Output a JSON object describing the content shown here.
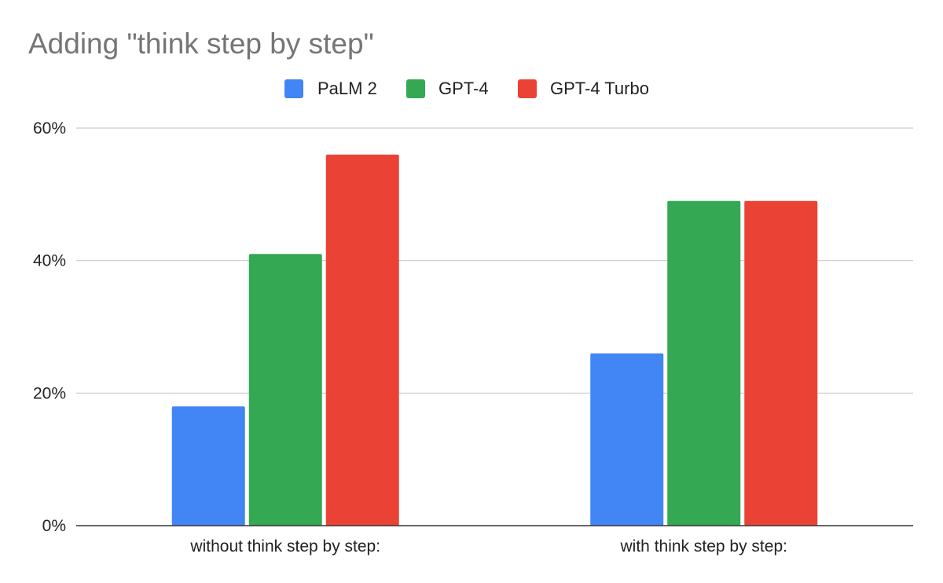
{
  "chart_data": {
    "type": "bar",
    "title": "Adding \"think step by step\"",
    "categories": [
      "without think step by step:",
      "with think step by step:"
    ],
    "series": [
      {
        "name": "PaLM 2",
        "color": "#4285f4",
        "values": [
          18,
          26
        ]
      },
      {
        "name": "GPT-4",
        "color": "#34a853",
        "values": [
          41,
          49
        ]
      },
      {
        "name": "GPT-4 Turbo",
        "color": "#ea4335",
        "values": [
          56,
          49
        ]
      }
    ],
    "yticks": [
      "0%",
      "20%",
      "40%",
      "60%"
    ],
    "ytick_values": [
      0,
      20,
      40,
      60
    ],
    "ylim": [
      0,
      60
    ],
    "grid": true,
    "legend_position": "top-center"
  }
}
